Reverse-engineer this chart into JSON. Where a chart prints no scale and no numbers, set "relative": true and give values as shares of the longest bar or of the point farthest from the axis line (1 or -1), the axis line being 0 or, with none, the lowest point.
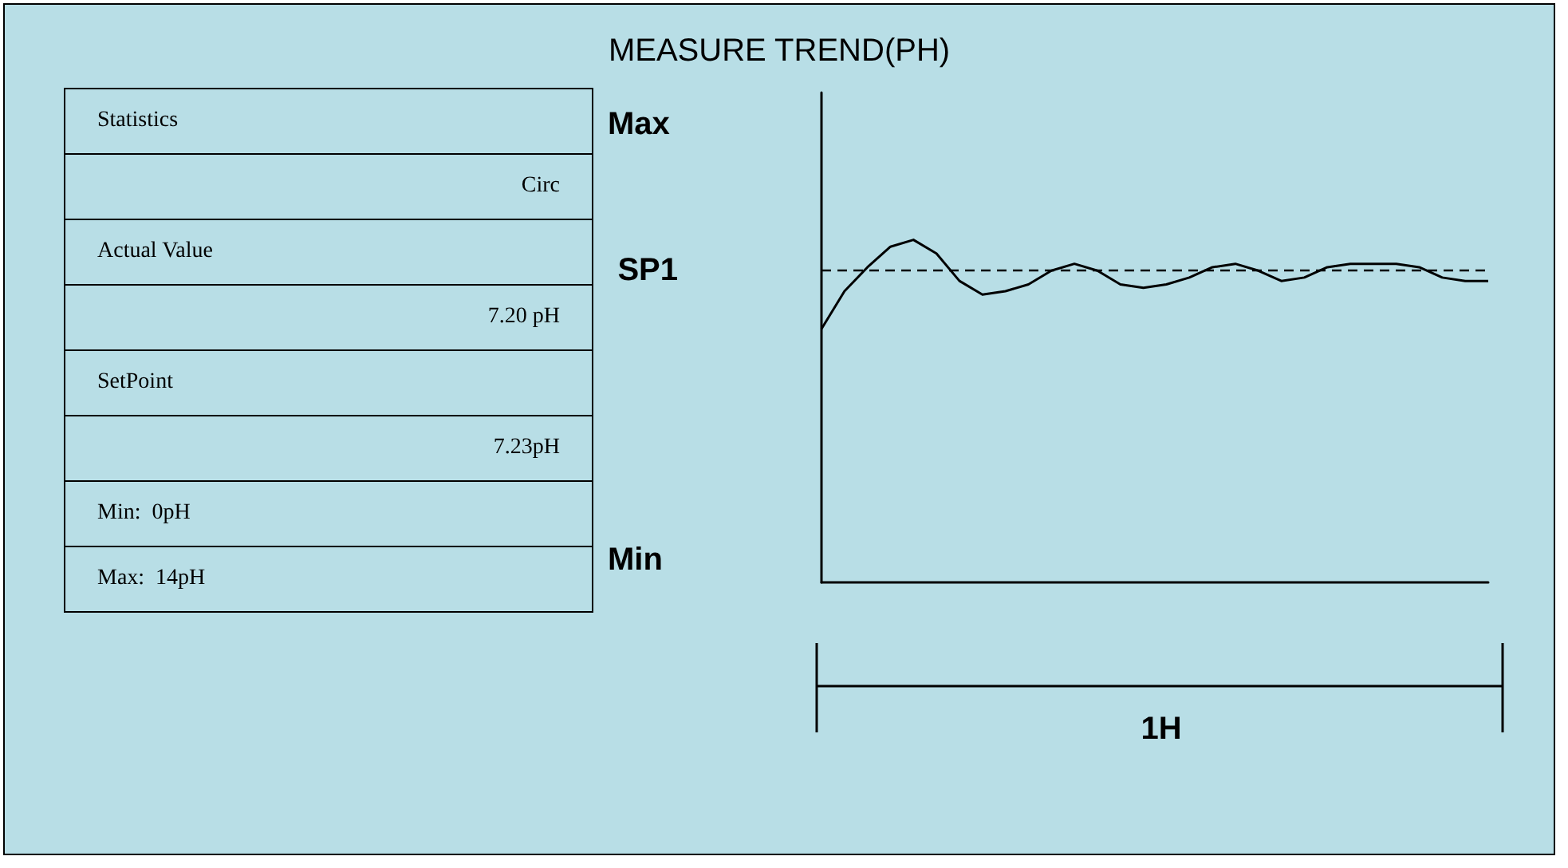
{
  "chart_data": [
    {
      "type": "other",
      "title": "MEASURE TREND(PH)",
      "annotations": [
        "Statistics",
        "Circ",
        "Actual Value",
        "7.20 pH",
        "SetPoint",
        "7.23pH",
        "Min:  0pH",
        "Max:  14pH"
      ]
    },
    {
      "type": "line",
      "relative": true,
      "color": "#000000",
      "line_style": "solid",
      "marker": "none",
      "grid": false,
      "categories": [
        null,
        null,
        null,
        null,
        null,
        null,
        null,
        null,
        null,
        null,
        null,
        null,
        null,
        null,
        null,
        null,
        null,
        null,
        null,
        null,
        null,
        null,
        null,
        null,
        null,
        null,
        null,
        null,
        null,
        null
      ],
      "values": [
        0.74,
        0.85,
        0.92,
        0.98,
        1,
        0.96,
        0.88,
        0.84,
        0.85,
        0.87,
        0.91,
        0.93,
        0.91,
        0.87,
        0.86,
        0.87,
        0.89,
        0.92,
        0.93,
        0.91,
        0.88,
        0.89,
        0.92,
        0.93,
        0.93,
        0.93,
        0.92,
        0.89,
        0.88,
        0.88
      ],
      "ref_lines": [
        {
          "axis": "y",
          "value": 0.91,
          "label": "SP1",
          "line_style": "dashed",
          "color": "#000000"
        }
      ],
      "annotations": [
        "Max",
        "Min",
        "1H"
      ]
    }
  ]
}
